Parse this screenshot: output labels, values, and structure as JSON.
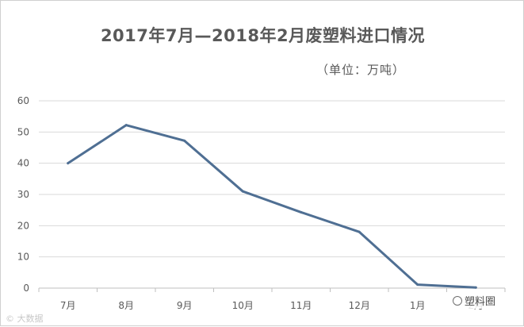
{
  "title": "2017年7月—2018年2月废塑料进口情况",
  "unit_note": "（单位：万吨）",
  "watermark_left": "© 大数据",
  "watermark_right": "塑料圈",
  "colors": {
    "line": "#4f6f93",
    "grid": "#d9d9d9",
    "text": "#595959"
  },
  "chart_data": {
    "type": "line",
    "title": "2017年7月—2018年2月废塑料进口情况",
    "subtitle": "（单位：万吨）",
    "categories": [
      "7月",
      "8月",
      "9月",
      "10月",
      "11月",
      "12月",
      "1月",
      "2月"
    ],
    "series": [
      {
        "values": [
          40,
          52.2,
          47.2,
          31,
          24.3,
          18,
          1.1,
          0.2
        ]
      }
    ],
    "y_ticks": [
      0,
      10,
      20,
      30,
      40,
      50,
      60
    ],
    "ylim": [
      0,
      60
    ],
    "xlabel": "",
    "ylabel": "",
    "grid": true,
    "legend": "none"
  }
}
